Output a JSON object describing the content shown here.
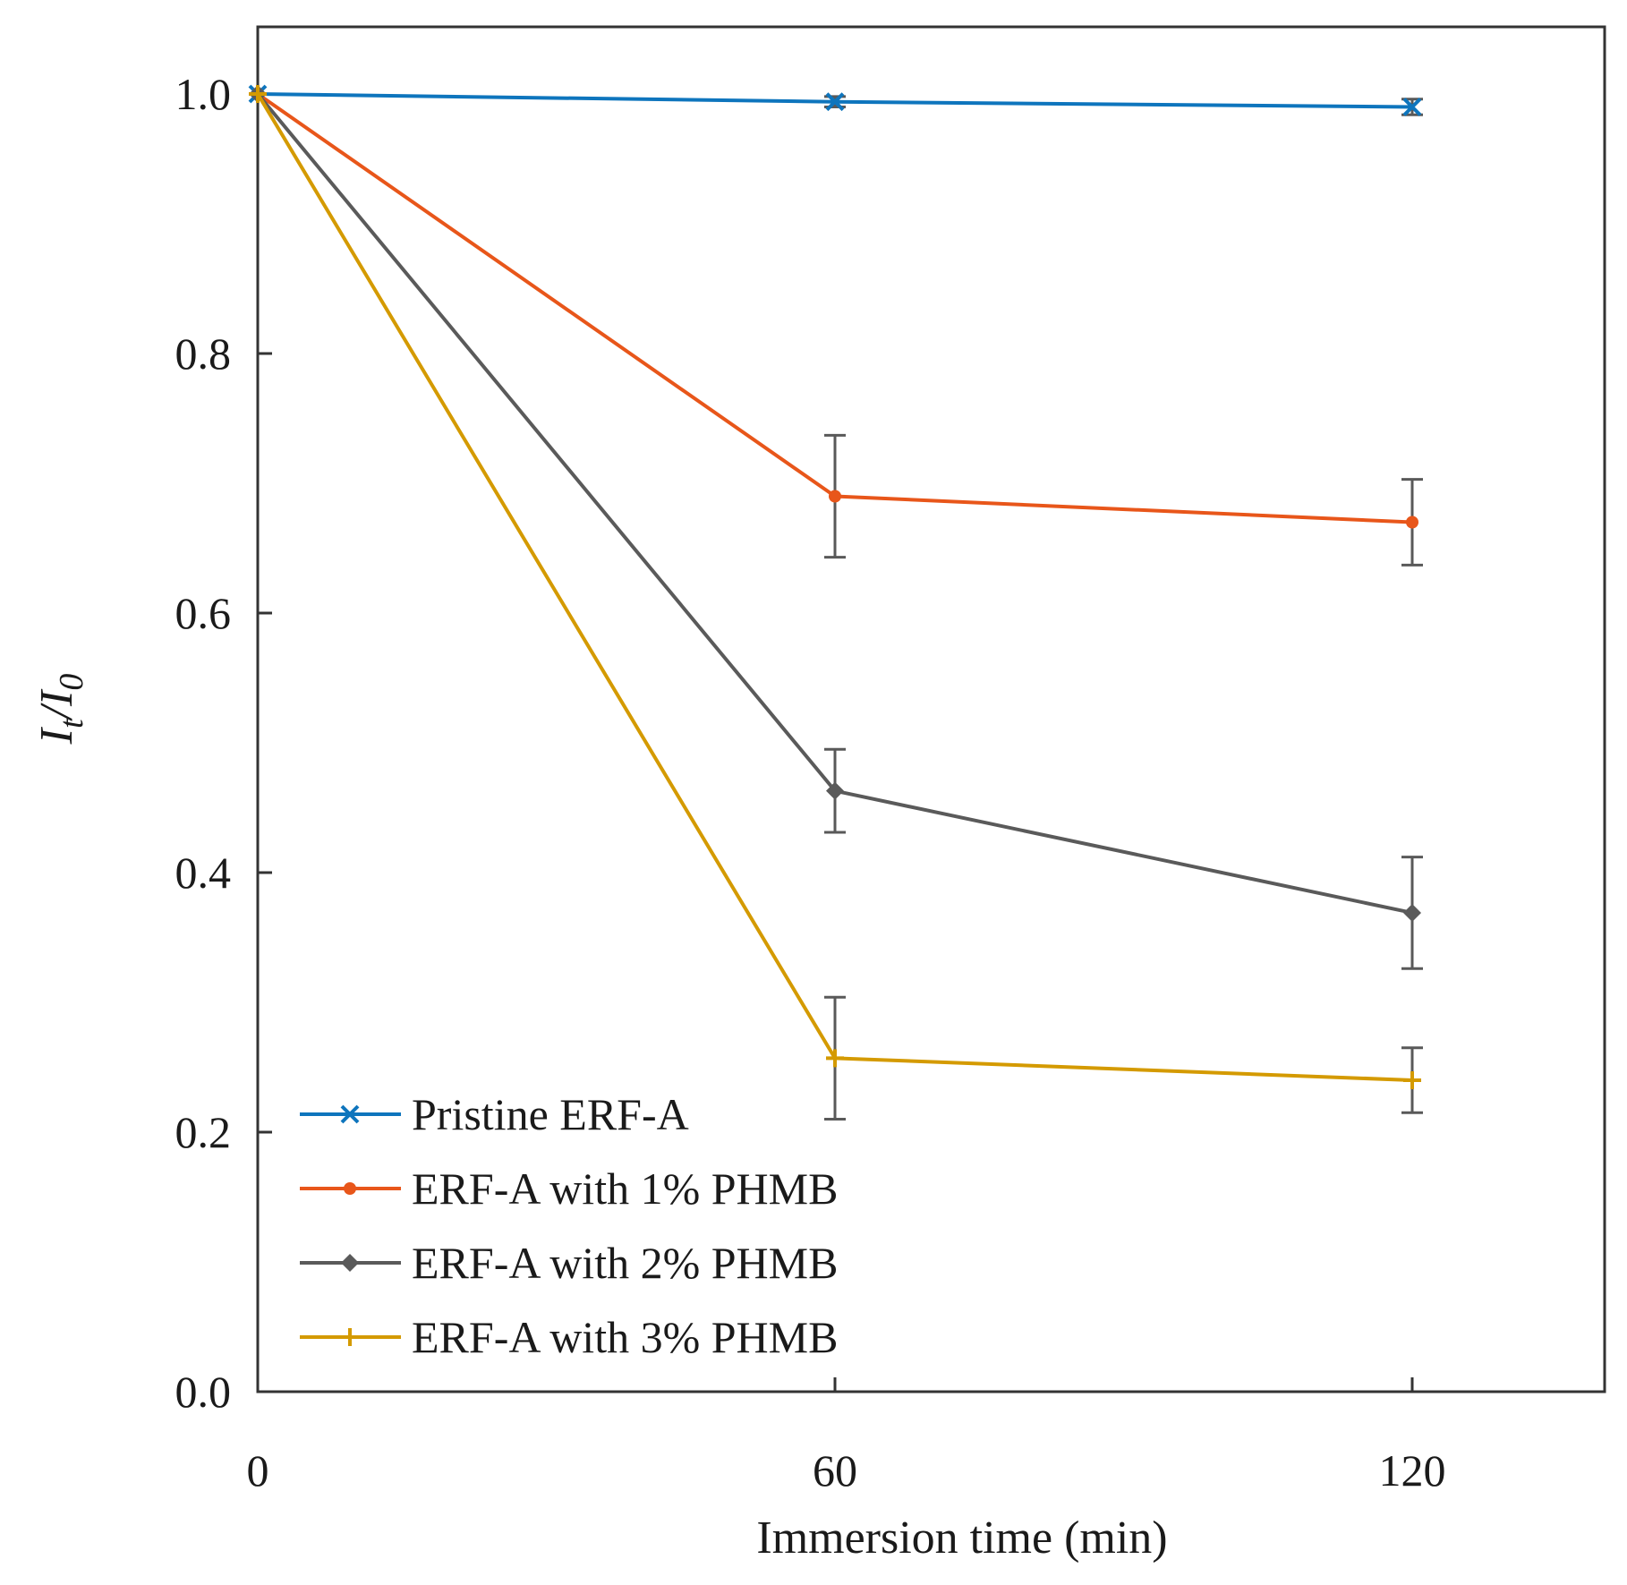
{
  "chart_data": {
    "type": "line",
    "title": "",
    "xlabel": "Immersion time (min)",
    "ylabel": {
      "main": "I",
      "sub1": "t",
      "sep": "/I",
      "sub2": "0"
    },
    "x": [
      0,
      60,
      120
    ],
    "xlim": [
      0,
      140
    ],
    "ylim": [
      0,
      1.05
    ],
    "xticks": [
      0,
      60,
      120
    ],
    "yticks": [
      0.0,
      0.2,
      0.4,
      0.6,
      0.8,
      1.0
    ],
    "ytick_labels": [
      "0.0",
      "0.2",
      "0.4",
      "0.6",
      "0.8",
      "1.0"
    ],
    "xtick_labels": [
      "0",
      "60",
      "120"
    ],
    "grid": false,
    "legend_position": "bottom-left",
    "errorbar_color": "#595959",
    "series": [
      {
        "name": "Pristine ERF-A",
        "color": "#0e75bd",
        "marker": "x",
        "values": [
          1.0,
          0.994,
          0.99
        ],
        "errors": [
          0,
          0.004,
          0.006
        ]
      },
      {
        "name": "ERF-A with 1% PHMB",
        "color": "#e8561a",
        "marker": "circle",
        "values": [
          1.0,
          0.69,
          0.67
        ],
        "errors": [
          0,
          0.047,
          0.033
        ]
      },
      {
        "name": "ERF-A with 2% PHMB",
        "color": "#5a5a5a",
        "marker": "diamond",
        "values": [
          1.0,
          0.463,
          0.369
        ],
        "errors": [
          0,
          0.032,
          0.043
        ]
      },
      {
        "name": "ERF-A with 3% PHMB",
        "color": "#d49a00",
        "marker": "plus",
        "values": [
          1.0,
          0.257,
          0.24
        ],
        "errors": [
          0,
          0.047,
          0.025
        ]
      }
    ]
  }
}
